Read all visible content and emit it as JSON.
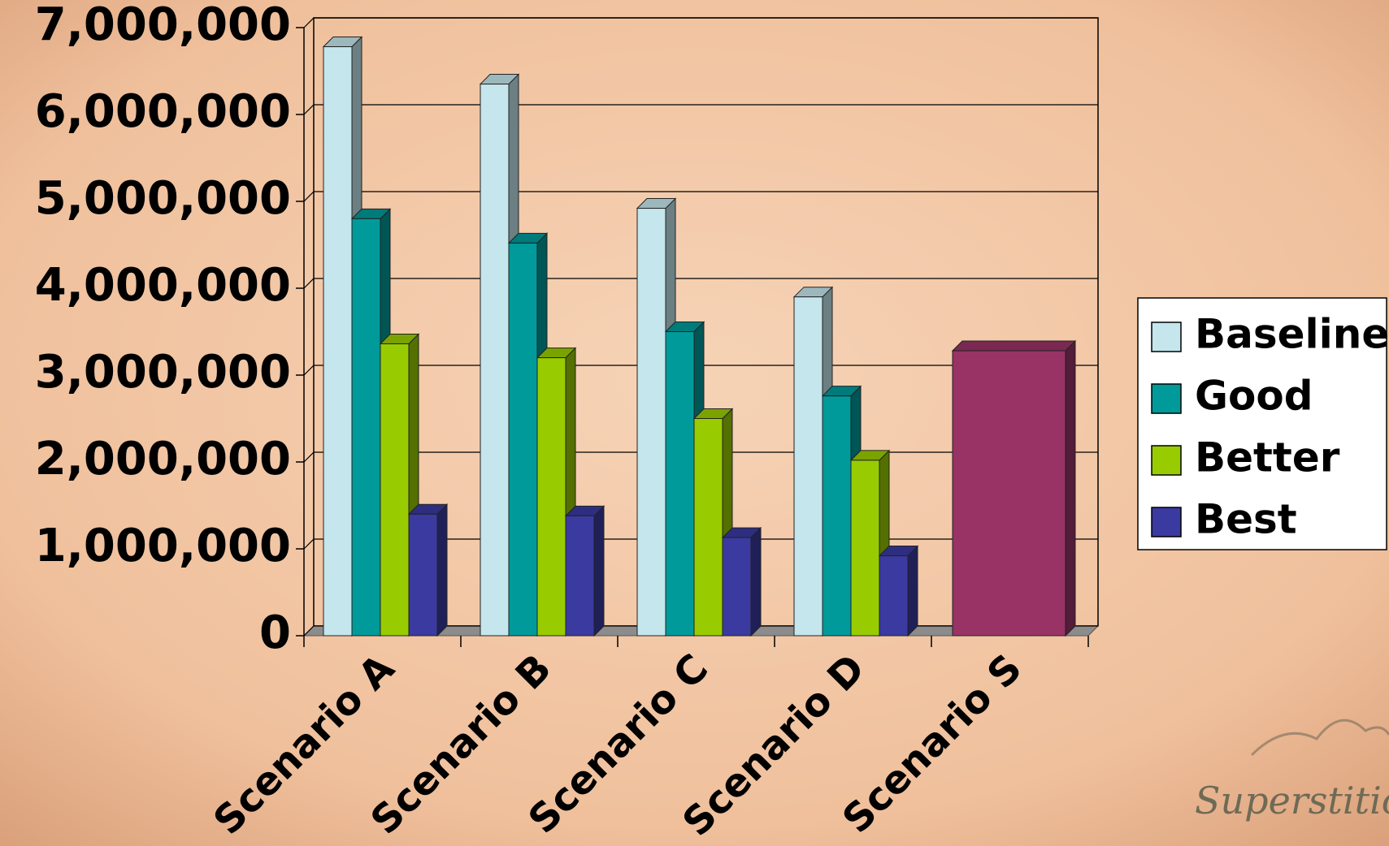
{
  "chart_data": {
    "type": "bar3d",
    "categories": [
      "Scenario A",
      "Scenario B",
      "Scenario C",
      "Scenario D",
      "Scenario S"
    ],
    "series": [
      {
        "name": "Baseline",
        "color": "#c4e6ec",
        "values": [
          6780000,
          6350000,
          4920000,
          3900000,
          null
        ]
      },
      {
        "name": "Good",
        "color": "#009a9a",
        "values": [
          4800000,
          4520000,
          3500000,
          2760000,
          null
        ]
      },
      {
        "name": "Better",
        "color": "#99cc00",
        "values": [
          3360000,
          3200000,
          2500000,
          2020000,
          null
        ]
      },
      {
        "name": "Best",
        "color": "#3a3aa0",
        "values": [
          1400000,
          1380000,
          1130000,
          920000,
          null
        ]
      },
      {
        "color": "#993366",
        "values": [
          null,
          null,
          null,
          null,
          3280000
        ]
      }
    ],
    "ylim": [
      0,
      7000000
    ],
    "yticks": [
      0,
      {
        "value": 1000000,
        "label": "1,000,000"
      },
      {
        "value": 2000000,
        "label": "2,000,000"
      },
      {
        "value": 3000000,
        "label": "3,000,000"
      },
      {
        "value": 4000000,
        "label": "4,000,000"
      },
      {
        "value": 5000000,
        "label": "5,000,000"
      },
      {
        "value": 6000000,
        "label": "6,000,000"
      },
      {
        "value": 7000000,
        "label": "7,000,000"
      }
    ],
    "grid": true,
    "legend": "right"
  },
  "watermark": "SuperstitionVis"
}
